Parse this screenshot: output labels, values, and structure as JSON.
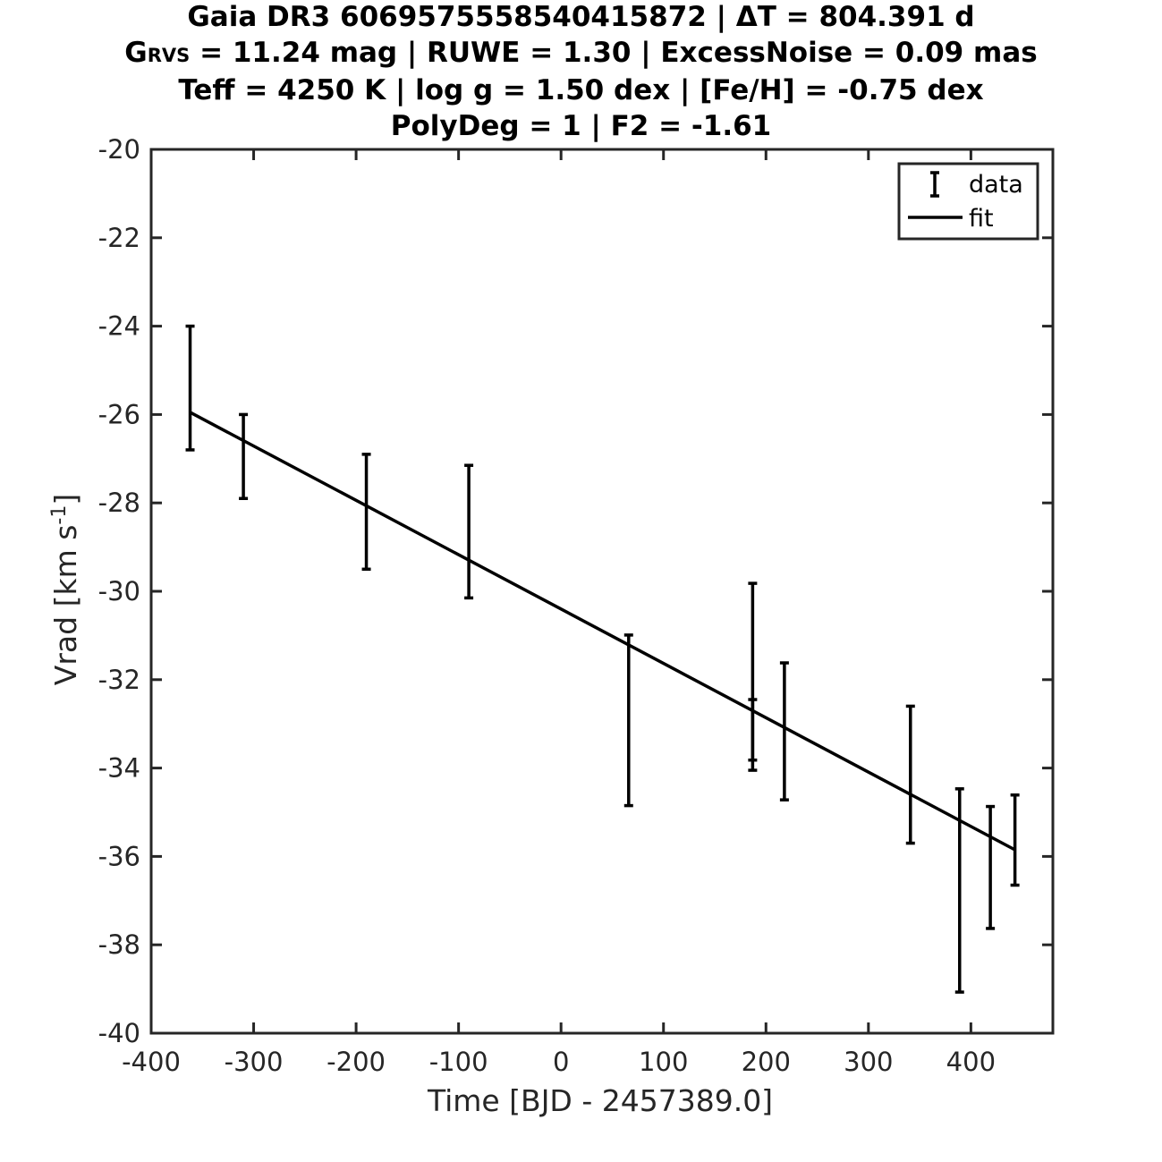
{
  "title": {
    "line1_prefix": "Gaia DR3 6069575558540415872 | ",
    "line1_delta": "ΔT = 804.391 d",
    "line2_g": "G",
    "line2_sub": "RVS",
    "line2_rest": " = 11.24 mag | RUWE = 1.30 | ExcessNoise = 0.09 mas",
    "line3": "Teff = 4250 K | log g = 1.50 dex | [Fe/H] = -0.75 dex",
    "line4": "PolyDeg = 1 | F2 = -1.61"
  },
  "chart_data": {
    "type": "scatter",
    "xlabel": "Time [BJD - 2457389.0]",
    "ylabel_main": "Vrad [km s",
    "ylabel_sup": "-1",
    "ylabel_end": "]",
    "xlim": [
      -400,
      480
    ],
    "ylim": [
      -40,
      -20
    ],
    "xticks": [
      -400,
      -300,
      -200,
      -100,
      0,
      100,
      200,
      300,
      400
    ],
    "yticks": [
      -20,
      -22,
      -24,
      -26,
      -28,
      -30,
      -32,
      -34,
      -36,
      -38,
      -40
    ],
    "legend": {
      "placement": "top-right",
      "entries": [
        "data",
        "fit"
      ]
    },
    "series": [
      {
        "name": "data",
        "kind": "errorbar",
        "points": [
          {
            "x": -362,
            "y": -25.4,
            "err": 1.4
          },
          {
            "x": -310,
            "y": -26.95,
            "err": 0.95
          },
          {
            "x": -190,
            "y": -28.2,
            "err": 1.3
          },
          {
            "x": -90,
            "y": -28.65,
            "err": 1.5
          },
          {
            "x": 66,
            "y": -32.92,
            "err": 1.93
          },
          {
            "x": 187,
            "y": -31.82,
            "err": 2.0
          },
          {
            "x": 187,
            "y": -33.25,
            "err": 0.8
          },
          {
            "x": 218,
            "y": -33.17,
            "err": 1.55
          },
          {
            "x": 341,
            "y": -34.15,
            "err": 1.55
          },
          {
            "x": 389,
            "y": -36.77,
            "err": 2.3
          },
          {
            "x": 419,
            "y": -36.25,
            "err": 1.38
          },
          {
            "x": 443,
            "y": -35.63,
            "err": 1.02
          }
        ]
      },
      {
        "name": "fit",
        "kind": "line",
        "points": [
          {
            "x": -362,
            "y": -25.95
          },
          {
            "x": 443,
            "y": -35.85
          }
        ]
      }
    ]
  }
}
